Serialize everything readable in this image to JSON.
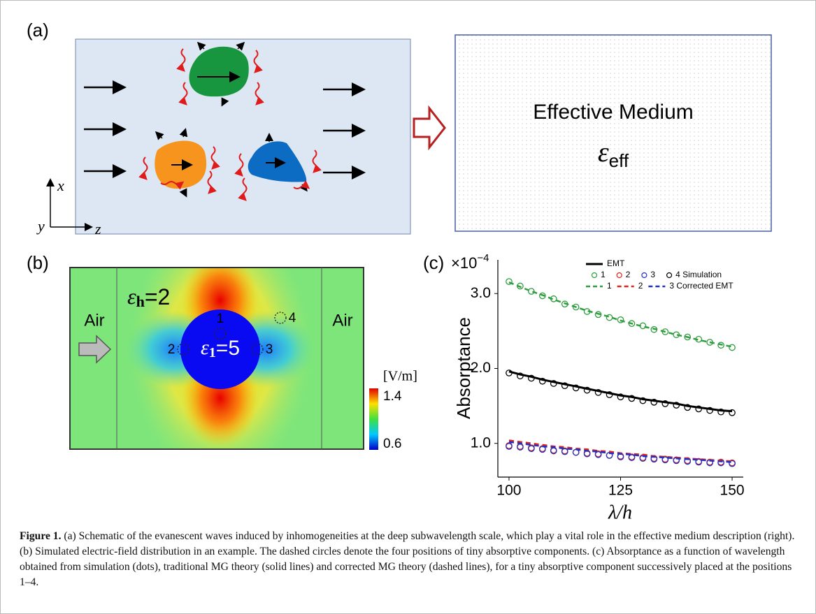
{
  "panel_a": {
    "label": "(a)",
    "axis_x": "x",
    "axis_y": "y",
    "axis_z": "z",
    "medium_title": "Effective Medium",
    "medium_symbol": "ε",
    "medium_subscript": "eff"
  },
  "panel_b": {
    "label": "(b)",
    "air_left": "Air",
    "air_right": "Air",
    "host_symbol": "ε",
    "host_subscript": "h",
    "host_value": "=2",
    "inclusion_symbol": "ε",
    "inclusion_subscript": "1",
    "inclusion_value": "=5",
    "positions": [
      "1",
      "2",
      "3",
      "4"
    ],
    "colorbar": {
      "unit": "[V/m]",
      "max": "1.4",
      "min": "0.6"
    }
  },
  "chart_data": {
    "type": "line",
    "panel_label": "(c)",
    "y_scale": {
      "base": "×10",
      "exponent": "−4"
    },
    "y_label": "Absorptance",
    "x_label": "λ/h",
    "x": [
      100,
      102.5,
      105,
      107.5,
      110,
      112.5,
      115,
      117.5,
      120,
      122.5,
      125,
      127.5,
      130,
      132.5,
      135,
      137.5,
      140,
      142.5,
      145,
      147.5,
      150
    ],
    "xlim": [
      97.5,
      152.5
    ],
    "xticks": [
      100,
      125,
      150
    ],
    "ylim": [
      0.55,
      3.45
    ],
    "yticks": [
      {
        "value": 1,
        "label": "1.0"
      },
      {
        "value": 2,
        "label": "2.0"
      },
      {
        "value": 3,
        "label": "3.0"
      }
    ],
    "series": [
      {
        "name": "EMT",
        "color": "#000000",
        "style": "solid",
        "values": [
          1.96,
          1.92,
          1.89,
          1.85,
          1.82,
          1.79,
          1.76,
          1.73,
          1.7,
          1.67,
          1.64,
          1.62,
          1.59,
          1.57,
          1.55,
          1.53,
          1.5,
          1.48,
          1.46,
          1.44,
          1.43
        ]
      },
      {
        "name": "1",
        "color": "#2e9e3e",
        "style": "markers",
        "values": [
          3.16,
          3.1,
          3.03,
          2.97,
          2.93,
          2.86,
          2.82,
          2.76,
          2.72,
          2.68,
          2.65,
          2.6,
          2.57,
          2.52,
          2.49,
          2.45,
          2.42,
          2.39,
          2.35,
          2.31,
          2.28
        ]
      },
      {
        "name": "2",
        "color": "#e0231f",
        "style": "markers",
        "values": [
          0.97,
          0.96,
          0.94,
          0.93,
          0.91,
          0.9,
          0.88,
          0.87,
          0.86,
          0.84,
          0.83,
          0.82,
          0.81,
          0.8,
          0.79,
          0.78,
          0.77,
          0.76,
          0.75,
          0.75,
          0.74
        ]
      },
      {
        "name": "3",
        "color": "#2030c0",
        "style": "markers",
        "values": [
          0.96,
          0.95,
          0.93,
          0.92,
          0.9,
          0.89,
          0.88,
          0.86,
          0.85,
          0.84,
          0.82,
          0.81,
          0.8,
          0.79,
          0.78,
          0.77,
          0.76,
          0.75,
          0.74,
          0.74,
          0.73
        ]
      },
      {
        "name": "4 Simulation",
        "color": "#000000",
        "style": "markers",
        "values": [
          1.94,
          1.9,
          1.87,
          1.83,
          1.8,
          1.77,
          1.74,
          1.71,
          1.68,
          1.65,
          1.62,
          1.6,
          1.57,
          1.55,
          1.53,
          1.51,
          1.48,
          1.46,
          1.44,
          1.42,
          1.41
        ]
      },
      {
        "name": "1",
        "color": "#2e9e3e",
        "style": "dashed",
        "values": [
          3.15,
          3.09,
          3.03,
          2.98,
          2.92,
          2.87,
          2.82,
          2.77,
          2.73,
          2.69,
          2.64,
          2.6,
          2.56,
          2.53,
          2.49,
          2.45,
          2.42,
          2.38,
          2.35,
          2.32,
          2.29
        ]
      },
      {
        "name": "2",
        "color": "#e0231f",
        "style": "dashed",
        "values": [
          1.04,
          1.02,
          1.0,
          0.98,
          0.96,
          0.95,
          0.93,
          0.92,
          0.9,
          0.89,
          0.87,
          0.86,
          0.85,
          0.83,
          0.82,
          0.81,
          0.8,
          0.79,
          0.78,
          0.77,
          0.76
        ]
      },
      {
        "name": "3 Corrected EMT",
        "color": "#2030c0",
        "style": "dashed",
        "values": [
          1.02,
          1.0,
          0.98,
          0.96,
          0.95,
          0.93,
          0.92,
          0.9,
          0.89,
          0.87,
          0.86,
          0.85,
          0.83,
          0.82,
          0.81,
          0.8,
          0.79,
          0.78,
          0.77,
          0.76,
          0.75
        ]
      }
    ]
  },
  "caption": {
    "label": "Figure 1.",
    "text": "(a) Schematic of the evanescent waves induced by inhomogeneities at the deep subwavelength scale, which play a vital role in the effective medium description (right). (b) Simulated electric-field distribution in an example. The dashed circles denote the four positions of tiny absorptive components. (c) Absorptance as a function of wavelength obtained from simulation (dots), traditional MG theory (solid lines) and corrected MG theory (dashed lines), for a tiny absorptive component successively placed at the positions 1–4."
  }
}
